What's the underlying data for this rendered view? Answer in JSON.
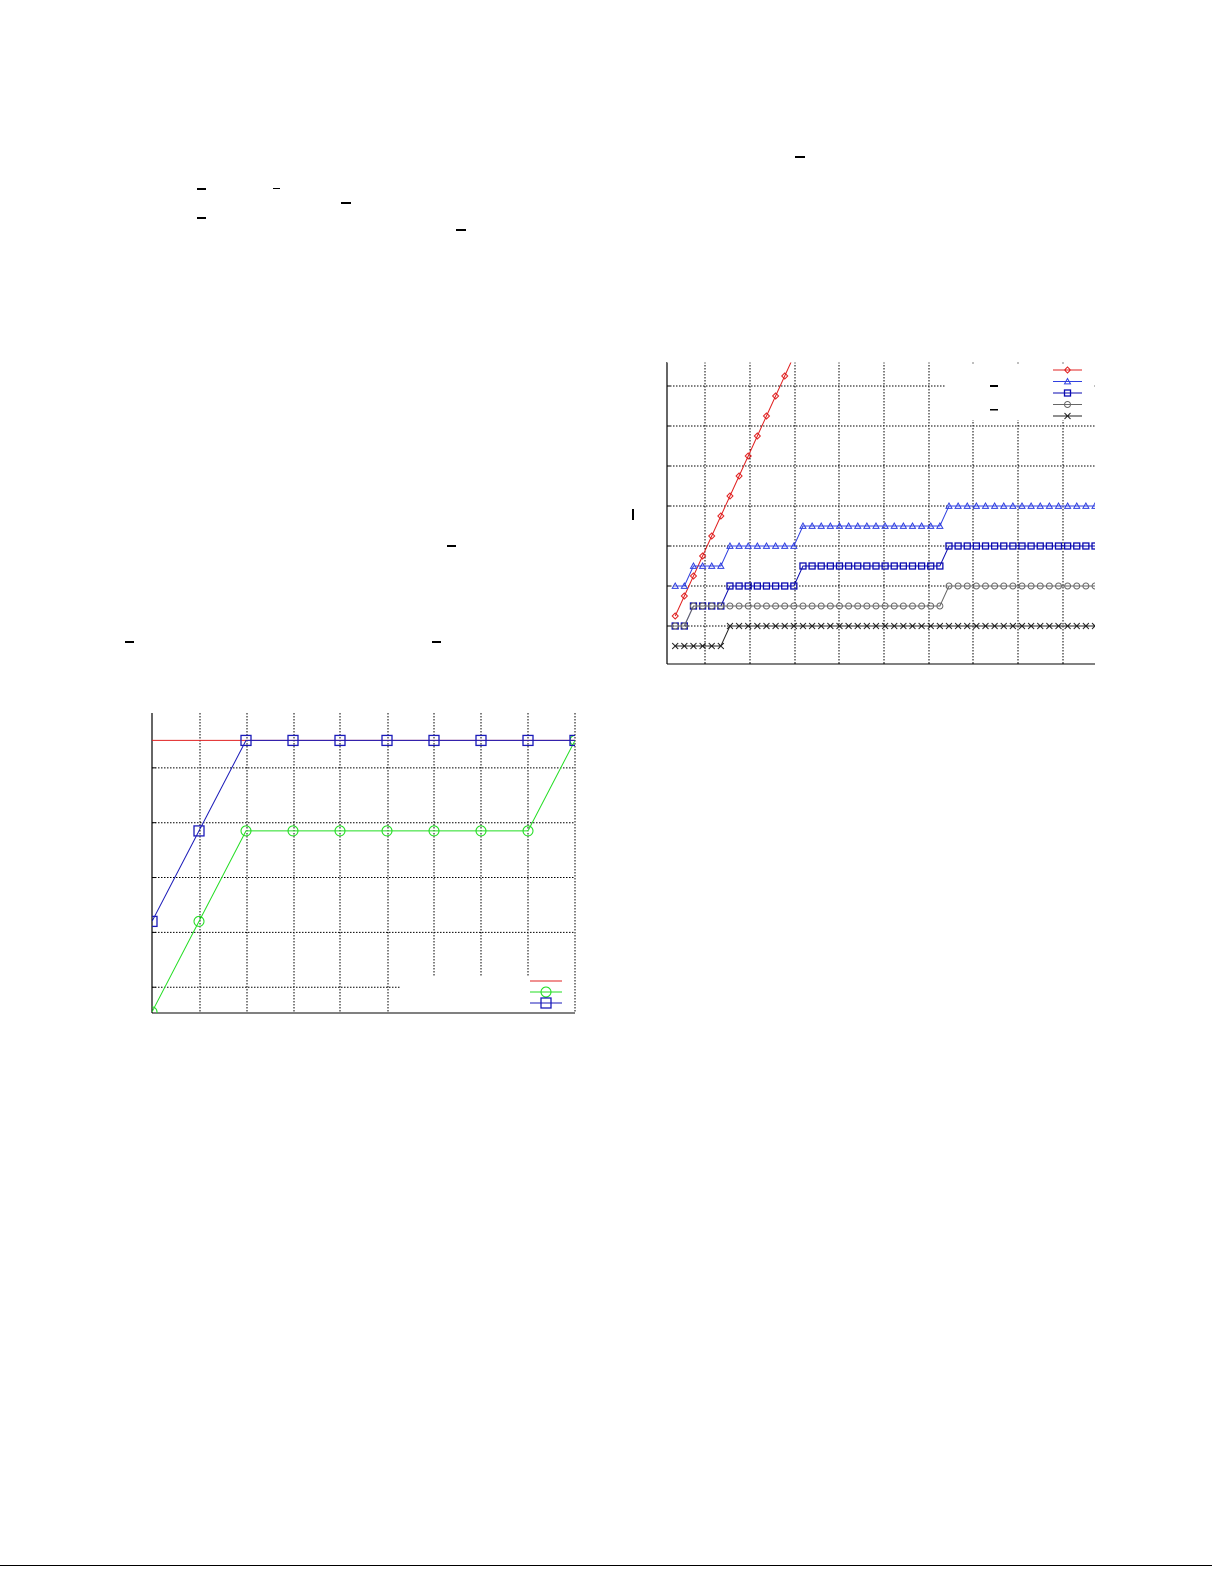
{
  "colors": {
    "red": "#e02020",
    "light_blue": "#3040e0",
    "dark_blue": "#0a0ab0",
    "green": "#22dd22",
    "gray": "#666666",
    "black": "#222222"
  },
  "chart_data": [
    {
      "type": "line",
      "title": "",
      "xlabel": "",
      "ylabel": "",
      "grid": true,
      "legend_placement": "bottom-right",
      "xlim": [
        0,
        9
      ],
      "ylim": [
        0.53,
        6
      ],
      "x": [
        0,
        1,
        2,
        3,
        4,
        5,
        6,
        7,
        8,
        9
      ],
      "series": [
        {
          "marker": "none",
          "color": "#e02020",
          "values": [
            5.5,
            5.5,
            5.5,
            5.5,
            5.5,
            5.5,
            5.5,
            5.5,
            5.5,
            5.5
          ]
        },
        {
          "marker": "circle",
          "color": "#22dd22",
          "values": [
            0.55,
            2.2,
            3.85,
            3.85,
            3.85,
            3.85,
            3.85,
            3.85,
            3.85,
            5.5
          ]
        },
        {
          "marker": "square",
          "color": "#1a1ab8",
          "values": [
            2.2,
            3.85,
            5.5,
            5.5,
            5.5,
            5.5,
            5.5,
            5.5,
            5.5,
            5.5
          ]
        }
      ]
    },
    {
      "type": "line",
      "title": "",
      "xlabel": "",
      "ylabel": "",
      "grid": true,
      "legend_placement": "top-right",
      "xlim": [
        -0.9,
        46
      ],
      "ylim": [
        0.05,
        7.6
      ],
      "series": [
        {
          "marker": "diamond",
          "color": "#e02020",
          "values": [
            1.25,
            1.75,
            2.25,
            2.75,
            3.25,
            3.75,
            4.25,
            4.75,
            5.25,
            5.75,
            6.25,
            6.75,
            7.25,
            7.75
          ]
        },
        {
          "marker": "triangle",
          "color": "#3040e0",
          "values": [
            2,
            2,
            2.5,
            2.5,
            2.5,
            2.5,
            3,
            3,
            3,
            3,
            3,
            3,
            3,
            3,
            3.5,
            3.5,
            3.5,
            3.5,
            3.5,
            3.5,
            3.5,
            3.5,
            3.5,
            3.5,
            3.5,
            3.5,
            3.5,
            3.5,
            3.5,
            3.5,
            4,
            4,
            4,
            4,
            4,
            4,
            4,
            4,
            4,
            4,
            4,
            4,
            4,
            4,
            4,
            4,
            4
          ]
        },
        {
          "marker": "square",
          "color": "#0a0ab0",
          "values": [
            1,
            1,
            1.5,
            1.5,
            1.5,
            1.5,
            2,
            2,
            2,
            2,
            2,
            2,
            2,
            2,
            2.5,
            2.5,
            2.5,
            2.5,
            2.5,
            2.5,
            2.5,
            2.5,
            2.5,
            2.5,
            2.5,
            2.5,
            2.5,
            2.5,
            2.5,
            2.5,
            3,
            3,
            3,
            3,
            3,
            3,
            3,
            3,
            3,
            3,
            3,
            3,
            3,
            3,
            3,
            3,
            3
          ]
        },
        {
          "marker": "circle",
          "color": "#666666",
          "values": [
            1,
            1,
            1.5,
            1.5,
            1.5,
            1.5,
            1.5,
            1.5,
            1.5,
            1.5,
            1.5,
            1.5,
            1.5,
            1.5,
            1.5,
            1.5,
            1.5,
            1.5,
            1.5,
            1.5,
            1.5,
            1.5,
            1.5,
            1.5,
            1.5,
            1.5,
            1.5,
            1.5,
            1.5,
            1.5,
            2,
            2,
            2,
            2,
            2,
            2,
            2,
            2,
            2,
            2,
            2,
            2,
            2,
            2,
            2,
            2,
            2
          ]
        },
        {
          "marker": "cross",
          "color": "#222222",
          "values": [
            0.5,
            0.5,
            0.5,
            0.5,
            0.5,
            0.5,
            1,
            1,
            1,
            1,
            1,
            1,
            1,
            1,
            1,
            1,
            1,
            1,
            1,
            1,
            1,
            1,
            1,
            1,
            1,
            1,
            1,
            1,
            1,
            1,
            1,
            1,
            1,
            1,
            1,
            1,
            1,
            1,
            1,
            1,
            1,
            1,
            1,
            1,
            1,
            1,
            1
          ]
        }
      ]
    }
  ]
}
